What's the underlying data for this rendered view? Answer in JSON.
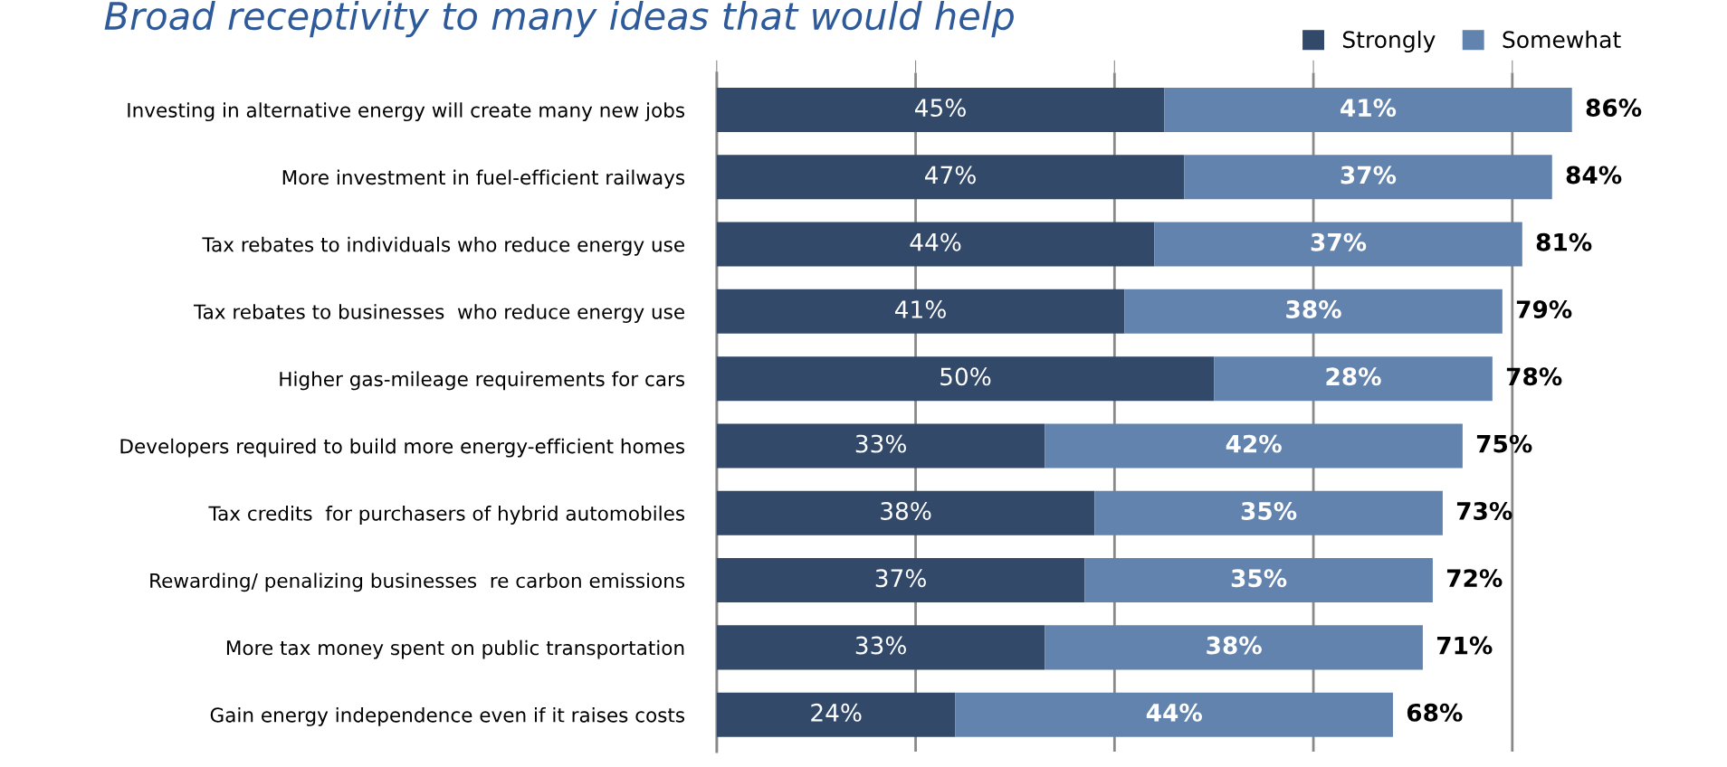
{
  "chart_data": {
    "type": "bar",
    "orientation": "horizontal",
    "stacked": true,
    "title": "Broad receptivity to many ideas that would help",
    "categories": [
      "Investing in alternative energy will create many new jobs",
      "More investment in fuel-efficient railways",
      "Tax rebates to individuals who reduce energy use",
      "Tax rebates to businesses  who reduce energy use",
      "Higher gas-mileage requirements for cars",
      "Developers required to build more energy-efficient homes",
      "Tax credits  for purchasers of hybrid automobiles",
      "Rewarding/ penalizing businesses  re carbon emissions",
      "More tax money spent on public transportation",
      "Gain energy independence even if it raises costs"
    ],
    "series": [
      {
        "name": "Strongly",
        "color": "#32496a",
        "values": [
          45,
          47,
          44,
          41,
          50,
          33,
          38,
          37,
          33,
          24
        ],
        "value_labels": [
          "45%",
          "47%",
          "44%",
          "41%",
          "50%",
          "33%",
          "38%",
          "37%",
          "33%",
          "24%"
        ]
      },
      {
        "name": "Somewhat",
        "color": "#6283ae",
        "values": [
          41,
          37,
          37,
          38,
          28,
          42,
          35,
          35,
          38,
          44
        ],
        "value_labels": [
          "41%",
          "37%",
          "37%",
          "38%",
          "28%",
          "42%",
          "35%",
          "35%",
          "38%",
          "44%"
        ]
      }
    ],
    "totals": [
      "86%",
      "84%",
      "81%",
      "79%",
      "78%",
      "75%",
      "73%",
      "72%",
      "71%",
      "68%"
    ],
    "grid": "x",
    "legend": "top right",
    "tick_labels": "y"
  }
}
